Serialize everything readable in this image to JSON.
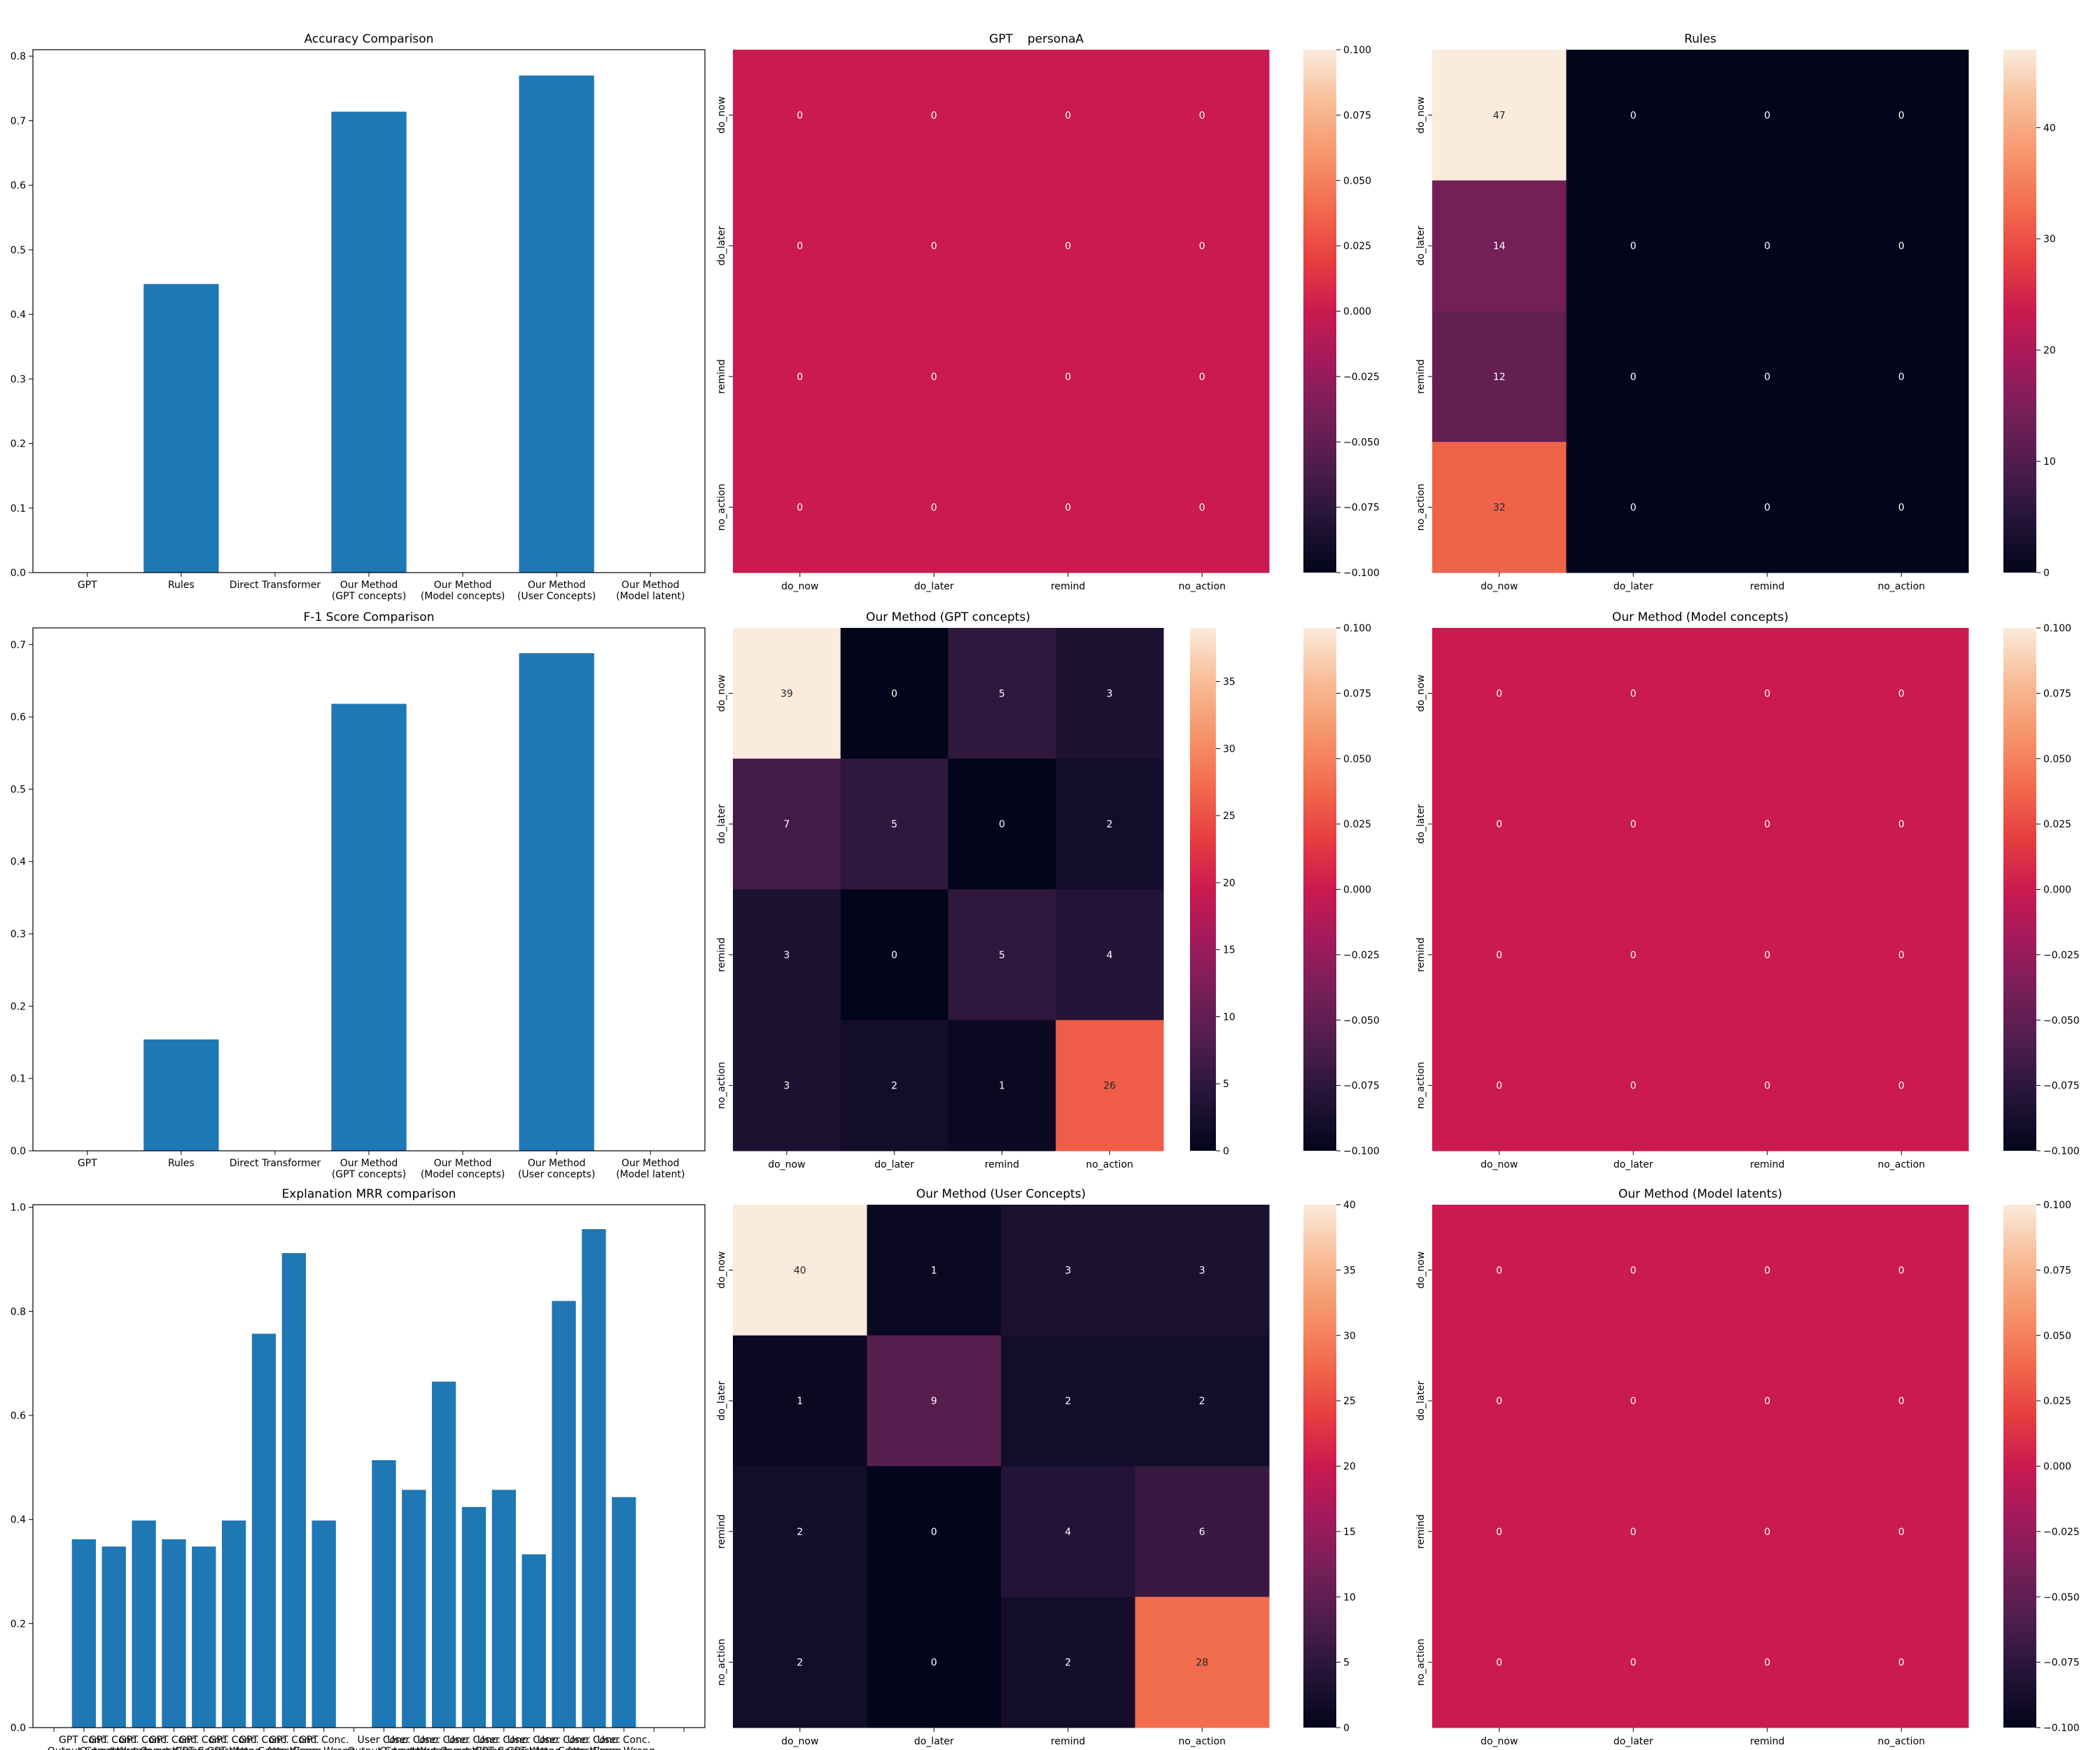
{
  "suptitle": "personaA",
  "colors": {
    "bar": "#1f77b4",
    "axis": "#000000",
    "background": "#ffffff"
  },
  "heatmap_labels": [
    "do_now",
    "do_later",
    "remind",
    "no_action"
  ],
  "chart_data": [
    {
      "id": "accuracy",
      "type": "bar",
      "title": "Accuracy Comparison",
      "xlabel": "",
      "ylabel": "",
      "categories": [
        "GPT",
        "Rules",
        "Direct Transformer",
        "Our Method\n(GPT concepts)",
        "Our Method\n(Model concepts)",
        "Our Method\n(User Concepts)",
        "Our Method\n(Model latent)"
      ],
      "values": [
        0.0,
        0.447,
        0.0,
        0.714,
        0.0,
        0.77,
        0.0
      ],
      "ylim": [
        0,
        0.81
      ],
      "yticks": [
        0.0,
        0.1,
        0.2,
        0.3,
        0.4,
        0.5,
        0.6,
        0.7,
        0.8
      ],
      "ytick_labels": [
        "0.0",
        "0.1",
        "0.2",
        "0.3",
        "0.4",
        "0.5",
        "0.6",
        "0.7",
        "0.8"
      ],
      "grid": false
    },
    {
      "id": "f1",
      "type": "bar",
      "title": "F-1 Score Comparison",
      "xlabel": "",
      "ylabel": "",
      "categories": [
        "GPT",
        "Rules",
        "Direct Transformer",
        "Our Method\n(GPT concepts)",
        "Our Method\n(Model concepts)",
        "Our Method\n(User concepts)",
        "Our Method\n(Model latent)"
      ],
      "values": [
        0.0,
        0.154,
        0.0,
        0.618,
        0.0,
        0.688,
        0.0
      ],
      "ylim": [
        0,
        0.723
      ],
      "yticks": [
        0.0,
        0.1,
        0.2,
        0.3,
        0.4,
        0.5,
        0.6,
        0.7
      ],
      "ytick_labels": [
        "0.0",
        "0.1",
        "0.2",
        "0.3",
        "0.4",
        "0.5",
        "0.6",
        "0.7"
      ],
      "grid": false
    },
    {
      "id": "mrr",
      "type": "bar",
      "title": "Explanation MRR comparison",
      "xlabel": "",
      "ylabel": "",
      "categories": [
        "",
        "GPT Conc.\nOutput Correct",
        "GPT Conc.\nOutput Wrong",
        "GPT Conc.\nInput Correct",
        "GPT Conc.\nInput Wrong",
        "GPT Conc.\nGPT Correct",
        "GPT Conc.\nGPT Wrong",
        "GPT Conc.\nAttn Correct",
        "GPT Conc.\nAttn Wrong",
        "GPT Conc.\nConc. Wrong",
        "",
        "User Conc.\nOutput Correct",
        "User Conc.\nOutput Wrong",
        "User Conc.\nInput Correct",
        "User Conc.\nInput Wrong",
        "User Conc.\nGPT Correct",
        "User Conc.\nGPT Wrong",
        "User Conc.\nAttn Correct",
        "User Conc.\nAttn Wrong",
        "User Conc.\nConc. Wrong",
        "",
        ""
      ],
      "values": [
        0.0,
        0.362,
        0.348,
        0.398,
        0.362,
        0.348,
        0.398,
        0.757,
        0.912,
        0.398,
        0.0,
        0.514,
        0.457,
        0.665,
        0.424,
        0.457,
        0.333,
        0.82,
        0.958,
        0.443,
        0.0,
        0.0
      ],
      "ylim": [
        0,
        1.005
      ],
      "yticks": [
        0.0,
        0.2,
        0.4,
        0.6,
        0.8,
        1.0
      ],
      "ytick_labels": [
        "0.0",
        "0.2",
        "0.4",
        "0.6",
        "0.8",
        "1.0"
      ],
      "grid": false
    },
    {
      "id": "hm-gpt",
      "type": "heatmap",
      "title": "GPT",
      "x_labels": [
        "do_now",
        "do_later",
        "remind",
        "no_action"
      ],
      "y_labels": [
        "do_now",
        "do_later",
        "remind",
        "no_action"
      ],
      "values": [
        [
          0,
          0,
          0,
          0
        ],
        [
          0,
          0,
          0,
          0
        ],
        [
          0,
          0,
          0,
          0
        ],
        [
          0,
          0,
          0,
          0
        ]
      ],
      "cell_text": [
        [
          "0",
          "0",
          "0",
          "0"
        ],
        [
          "0",
          "0",
          "0",
          "0"
        ],
        [
          "0",
          "0",
          "0",
          "0"
        ],
        [
          "0",
          "0",
          "0",
          "0"
        ]
      ],
      "colorbar": {
        "min": -0.1,
        "max": 0.1,
        "ticks": [
          0.1,
          0.075,
          0.05,
          0.025,
          0.0,
          -0.025,
          -0.05,
          -0.075,
          -0.1
        ],
        "tick_labels": [
          "0.100",
          "0.075",
          "0.050",
          "0.025",
          "0.000",
          "−0.025",
          "−0.050",
          "−0.075",
          "−0.100"
        ]
      },
      "colormap": "rocket"
    },
    {
      "id": "hm-rules",
      "type": "heatmap",
      "title": "Rules",
      "x_labels": [
        "do_now",
        "do_later",
        "remind",
        "no_action"
      ],
      "y_labels": [
        "do_now",
        "do_later",
        "remind",
        "no_action"
      ],
      "values": [
        [
          47,
          0,
          0,
          0
        ],
        [
          14,
          0,
          0,
          0
        ],
        [
          12,
          0,
          0,
          0
        ],
        [
          32,
          0,
          0,
          0
        ]
      ],
      "cell_text": [
        [
          "47",
          "0",
          "0",
          "0"
        ],
        [
          "14",
          "0",
          "0",
          "0"
        ],
        [
          "12",
          "0",
          "0",
          "0"
        ],
        [
          "32",
          "0",
          "0",
          "0"
        ]
      ],
      "colorbar": {
        "min": 0,
        "max": 47,
        "ticks": [
          40,
          30,
          20,
          10,
          0
        ],
        "tick_labels": [
          "40",
          "30",
          "20",
          "10",
          "0"
        ]
      },
      "colormap": "rocket"
    },
    {
      "id": "hm-gptc",
      "type": "heatmap",
      "title": "Our Method (GPT concepts)",
      "x_labels": [
        "do_now",
        "do_later",
        "remind",
        "no_action"
      ],
      "y_labels": [
        "do_now",
        "do_later",
        "remind",
        "no_action"
      ],
      "values": [
        [
          39,
          0,
          5,
          3
        ],
        [
          7,
          5,
          0,
          2
        ],
        [
          3,
          0,
          5,
          4
        ],
        [
          3,
          2,
          1,
          26
        ]
      ],
      "cell_text": [
        [
          "39",
          "0",
          "5",
          "3"
        ],
        [
          "7",
          "5",
          "0",
          "2"
        ],
        [
          "3",
          "0",
          "5",
          "4"
        ],
        [
          "3",
          "2",
          "1",
          "26"
        ]
      ],
      "colorbar": {
        "min": 0,
        "max": 39,
        "ticks": [
          35,
          30,
          25,
          20,
          15,
          10,
          5,
          0
        ],
        "tick_labels": [
          "35",
          "30",
          "25",
          "20",
          "15",
          "10",
          "5",
          "0"
        ]
      },
      "second_colorbar": {
        "min": -0.1,
        "max": 0.1,
        "ticks": [
          0.1,
          0.075,
          0.05,
          0.025,
          0.0,
          -0.025,
          -0.05,
          -0.075,
          -0.1
        ],
        "tick_labels": [
          "0.100",
          "0.075",
          "0.050",
          "0.025",
          "0.000",
          "−0.025",
          "−0.050",
          "−0.075",
          "−0.100"
        ]
      },
      "colormap": "rocket"
    },
    {
      "id": "hm-modelc",
      "type": "heatmap",
      "title": "Our Method (Model concepts)",
      "x_labels": [
        "do_now",
        "do_later",
        "remind",
        "no_action"
      ],
      "y_labels": [
        "do_now",
        "do_later",
        "remind",
        "no_action"
      ],
      "values": [
        [
          0,
          0,
          0,
          0
        ],
        [
          0,
          0,
          0,
          0
        ],
        [
          0,
          0,
          0,
          0
        ],
        [
          0,
          0,
          0,
          0
        ]
      ],
      "cell_text": [
        [
          "0",
          "0",
          "0",
          "0"
        ],
        [
          "0",
          "0",
          "0",
          "0"
        ],
        [
          "0",
          "0",
          "0",
          "0"
        ],
        [
          "0",
          "0",
          "0",
          "0"
        ]
      ],
      "colorbar": {
        "min": -0.1,
        "max": 0.1,
        "ticks": [
          0.1,
          0.075,
          0.05,
          0.025,
          0.0,
          -0.025,
          -0.05,
          -0.075,
          -0.1
        ],
        "tick_labels": [
          "0.100",
          "0.075",
          "0.050",
          "0.025",
          "0.000",
          "−0.025",
          "−0.050",
          "−0.075",
          "−0.100"
        ]
      },
      "colormap": "rocket"
    },
    {
      "id": "hm-userc",
      "type": "heatmap",
      "title": "Our Method (User Concepts)",
      "x_labels": [
        "do_now",
        "do_later",
        "remind",
        "no_action"
      ],
      "y_labels": [
        "do_now",
        "do_later",
        "remind",
        "no_action"
      ],
      "values": [
        [
          40,
          1,
          3,
          3
        ],
        [
          1,
          9,
          2,
          2
        ],
        [
          2,
          0,
          4,
          6
        ],
        [
          2,
          0,
          2,
          28
        ]
      ],
      "cell_text": [
        [
          "40",
          "1",
          "3",
          "3"
        ],
        [
          "1",
          "9",
          "2",
          "2"
        ],
        [
          "2",
          "0",
          "4",
          "6"
        ],
        [
          "2",
          "0",
          "2",
          "28"
        ]
      ],
      "colorbar": {
        "min": 0,
        "max": 40,
        "ticks": [
          40,
          35,
          30,
          25,
          20,
          15,
          10,
          5,
          0
        ],
        "tick_labels": [
          "40",
          "35",
          "30",
          "25",
          "20",
          "15",
          "10",
          "5",
          "0"
        ]
      },
      "colormap": "rocket"
    },
    {
      "id": "hm-modell",
      "type": "heatmap",
      "title": "Our Method (Model latents)",
      "x_labels": [
        "do_now",
        "do_later",
        "remind",
        "no_action"
      ],
      "y_labels": [
        "do_now",
        "do_later",
        "remind",
        "no_action"
      ],
      "values": [
        [
          0,
          0,
          0,
          0
        ],
        [
          0,
          0,
          0,
          0
        ],
        [
          0,
          0,
          0,
          0
        ],
        [
          0,
          0,
          0,
          0
        ]
      ],
      "cell_text": [
        [
          "0",
          "0",
          "0",
          "0"
        ],
        [
          "0",
          "0",
          "0",
          "0"
        ],
        [
          "0",
          "0",
          "0",
          "0"
        ],
        [
          "0",
          "0",
          "0",
          "0"
        ]
      ],
      "colorbar": {
        "min": -0.1,
        "max": 0.1,
        "ticks": [
          0.1,
          0.075,
          0.05,
          0.025,
          0.0,
          -0.025,
          -0.05,
          -0.075,
          -0.1
        ],
        "tick_labels": [
          "0.100",
          "0.075",
          "0.050",
          "0.025",
          "0.000",
          "−0.025",
          "−0.050",
          "−0.075",
          "−0.100"
        ]
      },
      "colormap": "rocket"
    }
  ]
}
